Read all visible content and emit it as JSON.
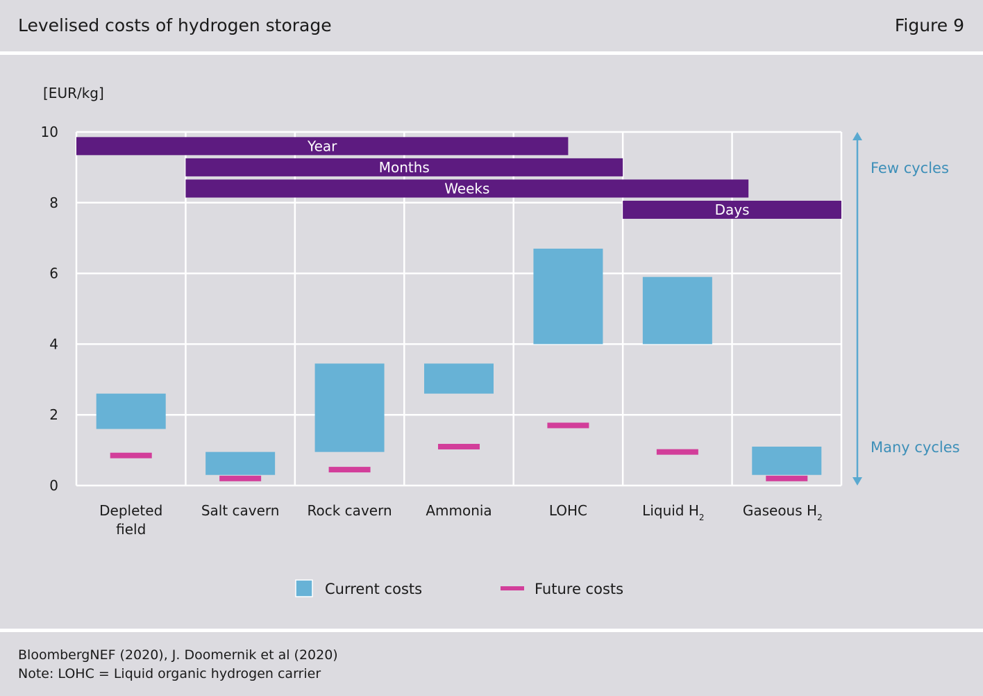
{
  "header": {
    "title": "Levelised costs of hydrogen storage",
    "figure_label": "Figure 9"
  },
  "footer": {
    "source": "BloombergNEF (2020), J. Doomernik et al (2020)",
    "note": "Note: LOHC = Liquid organic hydrogen carrier"
  },
  "chart_data": {
    "type": "bar",
    "ylabel": "[EUR/kg]",
    "ylim": [
      0,
      10
    ],
    "yticks": [
      0,
      2,
      4,
      6,
      8,
      10
    ],
    "grid": true,
    "categories": [
      {
        "label": "Depleted field",
        "lines": [
          "Depleted",
          "field"
        ],
        "sub": ""
      },
      {
        "label": "Salt cavern",
        "lines": [
          "Salt cavern"
        ],
        "sub": ""
      },
      {
        "label": "Rock cavern",
        "lines": [
          "Rock cavern"
        ],
        "sub": ""
      },
      {
        "label": "Ammonia",
        "lines": [
          "Ammonia"
        ],
        "sub": ""
      },
      {
        "label": "LOHC",
        "lines": [
          "LOHC"
        ],
        "sub": ""
      },
      {
        "label": "Liquid H2",
        "lines": [
          "Liquid H"
        ],
        "sub": "2"
      },
      {
        "label": "Gaseous H2",
        "lines": [
          "Gaseous H"
        ],
        "sub": "2"
      }
    ],
    "series": [
      {
        "name": "Current costs",
        "kind": "range",
        "color": "#67b2d6",
        "ranges": [
          [
            1.6,
            2.6
          ],
          [
            0.3,
            0.95
          ],
          [
            0.95,
            3.45
          ],
          [
            2.6,
            3.45
          ],
          [
            4.0,
            6.7
          ],
          [
            4.0,
            5.9
          ],
          [
            0.3,
            1.1
          ]
        ]
      },
      {
        "name": "Future costs",
        "kind": "marker",
        "color": "#d23e9a",
        "values": [
          0.85,
          0.2,
          0.45,
          1.1,
          1.7,
          0.95,
          0.2
        ]
      }
    ],
    "duration_bands": [
      {
        "label": "Year",
        "from": 0,
        "to": 4.5,
        "y": 9.6
      },
      {
        "label": "Months",
        "from": 1,
        "to": 5,
        "y": 9.0
      },
      {
        "label": "Weeks",
        "from": 1,
        "to": 6.15,
        "y": 8.4
      },
      {
        "label": "Days",
        "from": 5,
        "to": 7,
        "y": 7.8
      }
    ],
    "band_color": "#5d1b80",
    "cycle_axis": {
      "top_label": "Few cycles",
      "bottom_label": "Many cycles",
      "color": "#5aa9d0"
    },
    "legend": {
      "placement": "bottom-center",
      "items": [
        {
          "label": "Current costs",
          "marker": "square",
          "color": "#67b2d6"
        },
        {
          "label": "Future costs",
          "marker": "dash",
          "color": "#d23e9a"
        }
      ]
    }
  }
}
